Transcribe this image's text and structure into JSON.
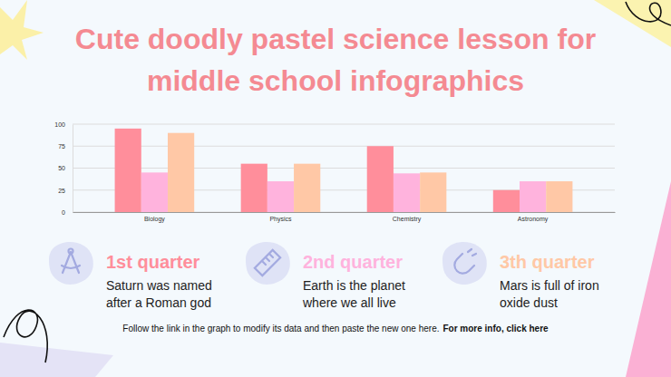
{
  "chart_data": {
    "type": "bar",
    "title": "Cute doodly pastel science lesson for middle school infographics",
    "categories": [
      "Biology",
      "Physics",
      "Chemistry",
      "Astronomy"
    ],
    "series": [
      {
        "name": "1st quarter",
        "color": "#ff8e9b",
        "values": [
          95,
          55,
          75,
          25
        ]
      },
      {
        "name": "2nd quarter",
        "color": "#ffb3dd",
        "values": [
          45,
          35,
          44,
          35
        ]
      },
      {
        "name": "3th quarter",
        "color": "#ffc8a6",
        "values": [
          90,
          55,
          45,
          35
        ]
      }
    ],
    "ylim": [
      0,
      100
    ],
    "yticks": [
      0,
      25,
      50,
      75,
      100
    ],
    "grid": true,
    "legend": "bottom"
  },
  "notes": [
    "Saturn was named after a Roman god",
    "Earth is the planet where we all live",
    "Mars is full of iron oxide dust"
  ],
  "footer": {
    "text": "Follow the link in the graph to modify its data and then paste the new one here.",
    "link": "For more info, click here"
  }
}
